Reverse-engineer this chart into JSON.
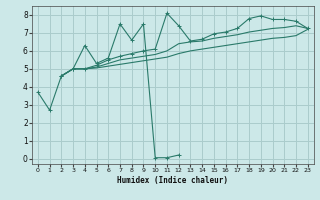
{
  "xlabel": "Humidex (Indice chaleur)",
  "bg_color": "#cce8e8",
  "grid_color": "#aacccc",
  "line_color": "#2a7a6a",
  "xlim": [
    -0.5,
    23.5
  ],
  "ylim": [
    -0.3,
    8.5
  ],
  "xticks": [
    0,
    1,
    2,
    3,
    4,
    5,
    6,
    7,
    8,
    9,
    10,
    11,
    12,
    13,
    14,
    15,
    16,
    17,
    18,
    19,
    20,
    21,
    22,
    23
  ],
  "yticks": [
    0,
    1,
    2,
    3,
    4,
    5,
    6,
    7,
    8
  ],
  "series1_x": [
    0,
    1,
    2,
    3,
    4,
    5,
    6,
    7,
    8,
    9,
    10,
    11,
    12
  ],
  "series1_y": [
    3.7,
    2.7,
    4.6,
    5.0,
    6.3,
    5.3,
    5.6,
    7.5,
    6.6,
    7.5,
    0.05,
    0.05,
    0.2
  ],
  "series2_x": [
    2,
    3,
    4,
    5,
    6,
    7,
    8,
    9,
    10,
    11,
    12,
    13,
    14,
    15,
    16,
    17,
    18,
    19,
    20,
    21,
    22,
    23
  ],
  "series2_y": [
    4.6,
    5.0,
    5.0,
    5.2,
    5.5,
    5.7,
    5.85,
    6.0,
    6.1,
    8.1,
    7.4,
    6.55,
    6.65,
    6.95,
    7.05,
    7.25,
    7.8,
    7.95,
    7.75,
    7.75,
    7.65,
    7.25
  ],
  "series3_x": [
    2,
    3,
    4,
    5,
    6,
    7,
    8,
    9,
    10,
    11,
    12,
    13,
    14,
    15,
    16,
    17,
    18,
    19,
    20,
    21,
    22,
    23
  ],
  "series3_y": [
    4.6,
    5.0,
    5.0,
    5.1,
    5.3,
    5.5,
    5.6,
    5.7,
    5.8,
    6.0,
    6.4,
    6.5,
    6.55,
    6.7,
    6.8,
    6.9,
    7.05,
    7.15,
    7.25,
    7.3,
    7.4,
    7.25
  ],
  "series4_x": [
    2,
    3,
    4,
    5,
    6,
    7,
    8,
    9,
    10,
    11,
    12,
    13,
    14,
    15,
    16,
    17,
    18,
    19,
    20,
    21,
    22,
    23
  ],
  "series4_y": [
    4.6,
    5.0,
    5.0,
    5.05,
    5.15,
    5.25,
    5.35,
    5.45,
    5.55,
    5.65,
    5.85,
    6.0,
    6.1,
    6.2,
    6.3,
    6.4,
    6.5,
    6.6,
    6.7,
    6.75,
    6.85,
    7.2
  ]
}
